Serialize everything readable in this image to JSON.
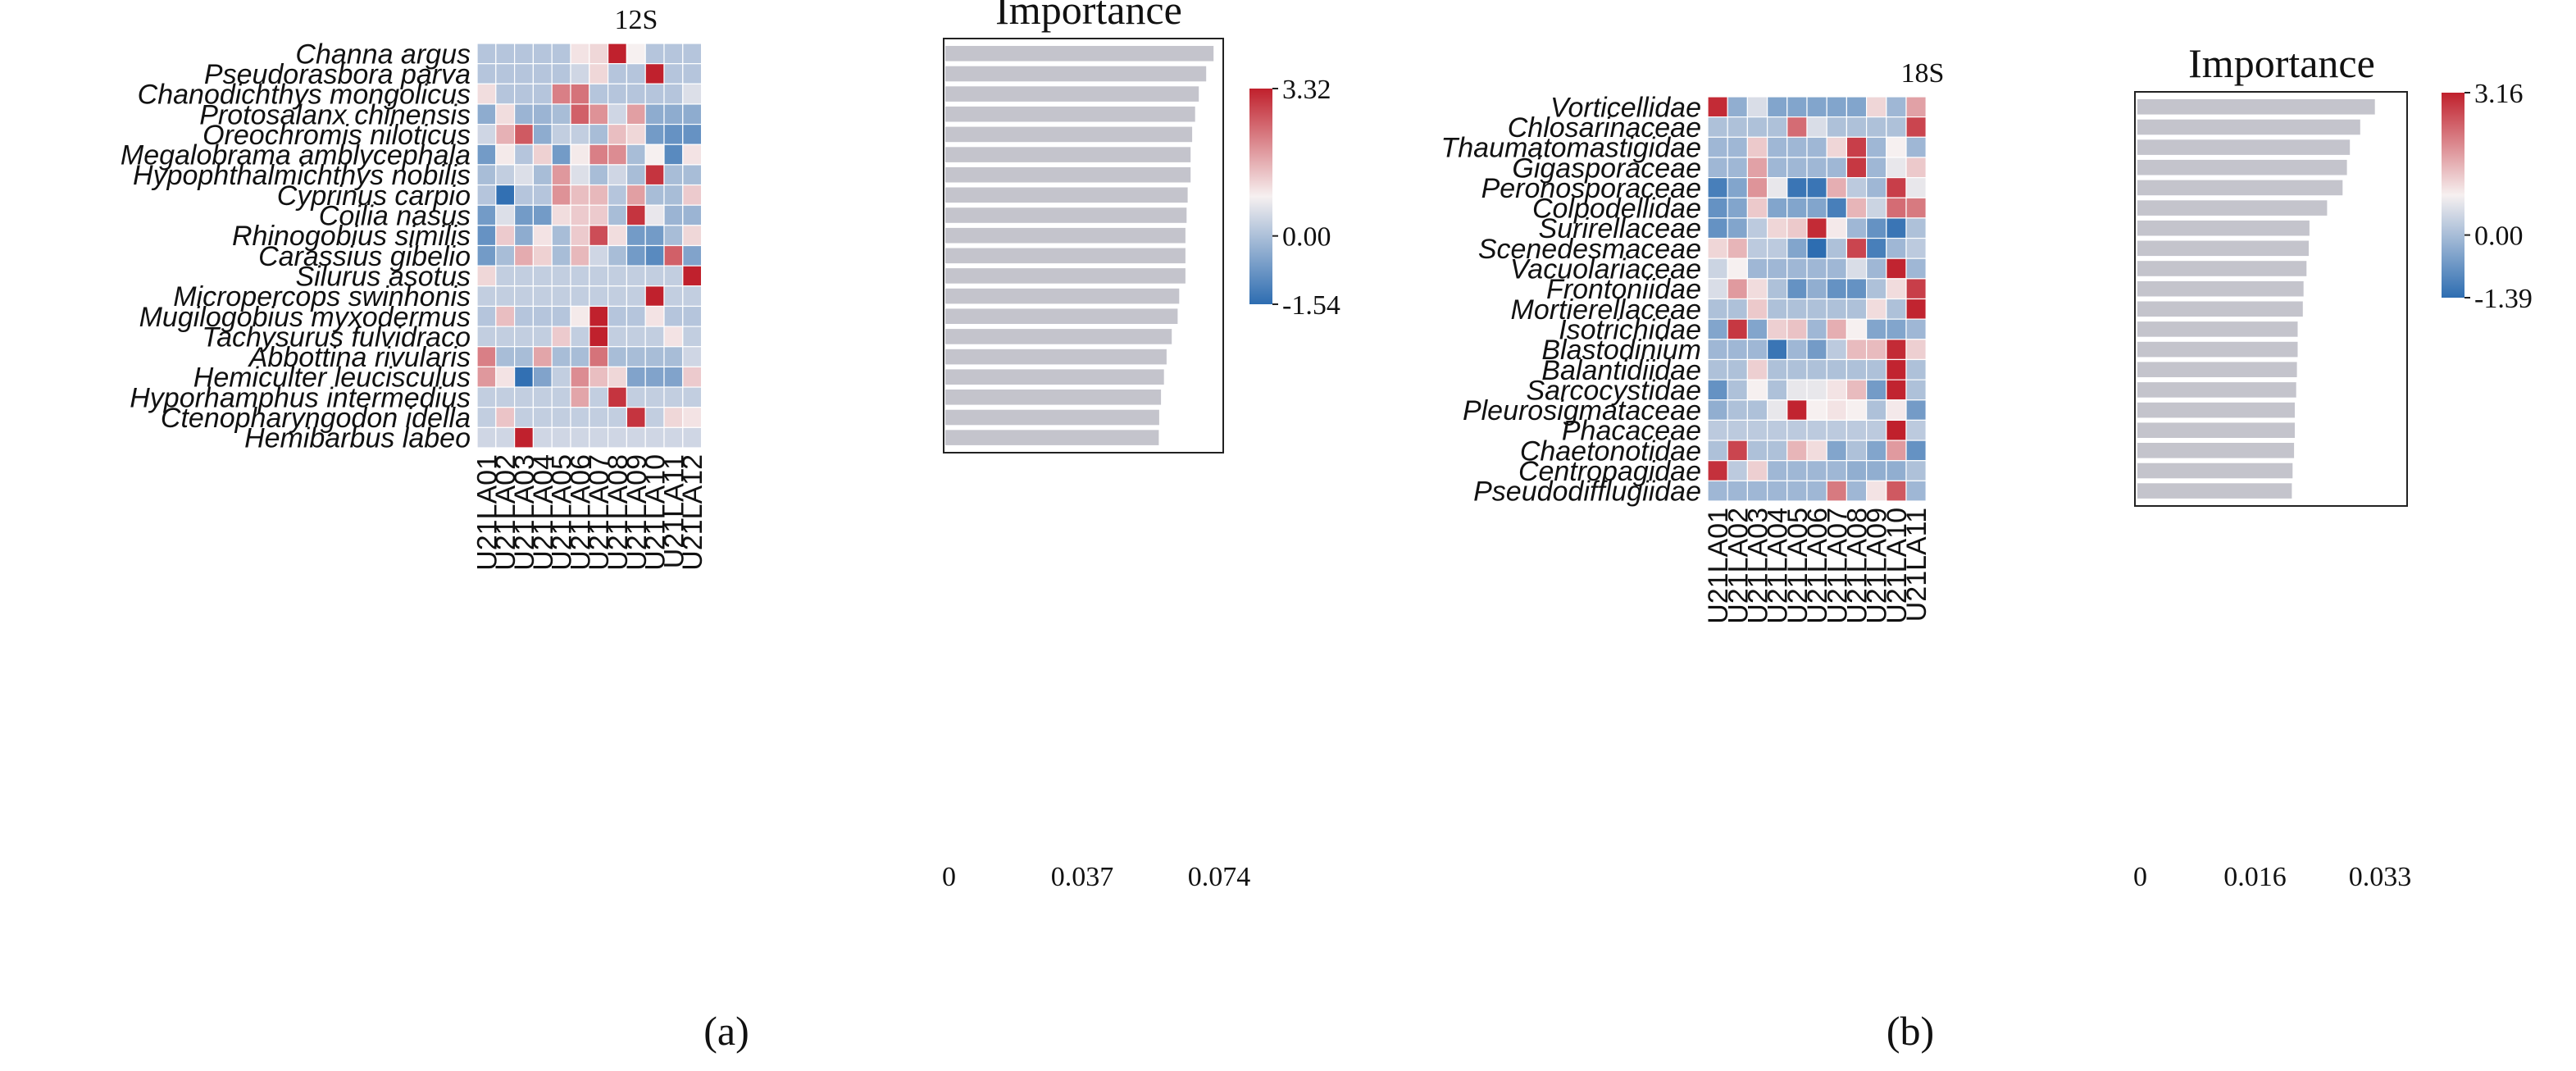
{
  "chart_data": [
    {
      "type": "heatmap",
      "panel": "(a)",
      "title": "12S",
      "importance_title": "Importance",
      "colorbar": {
        "max": 3.32,
        "mid": 0.0,
        "min": -1.54,
        "labels": [
          "3.32",
          "0.00",
          "-1.54"
        ]
      },
      "samples": [
        "U21LA01",
        "U21LA02",
        "U21LA03",
        "U21LA04",
        "U21LA05",
        "U21LA06",
        "U21LA07",
        "U21LA08",
        "U21LA09",
        "U21LA10",
        "U21LA11",
        "U21LA12"
      ],
      "species": [
        "Channa argus",
        "Pseudorasbora parva",
        "Chanodichthys mongolicus",
        "Protosalanx chinensis",
        "Oreochromis niloticus",
        "Megalobrama amblycephala",
        "Hypophthalmichthys nobilis",
        "Cyprinus carpio",
        "Coilia nasus",
        "Rhinogobius similis",
        "Carassius gibelio",
        "Silurus asotus",
        "Micropercops swinhonis",
        "Mugilogobius myxodermus",
        "Tachysurus fulvidraco",
        "Abbottina rivularis",
        "Hemiculter leucisculus",
        "Hyporhamphus intermedius",
        "Ctenopharyngodon idella",
        "Hemibarbus labeo"
      ],
      "values": [
        [
          -0.5,
          -0.5,
          -0.5,
          -0.5,
          -0.5,
          0.2,
          0.4,
          3.3,
          0.0,
          -0.5,
          -0.5,
          -0.5
        ],
        [
          -0.5,
          -0.5,
          -0.5,
          -0.5,
          -0.5,
          -0.3,
          0.4,
          -0.5,
          -0.5,
          3.3,
          -0.5,
          -0.5
        ],
        [
          0.3,
          -0.5,
          -0.5,
          -0.5,
          1.8,
          2.0,
          -0.5,
          -0.5,
          -0.5,
          -0.5,
          -0.5,
          -0.2
        ],
        [
          -0.8,
          0.3,
          -0.7,
          -0.7,
          -0.6,
          2.3,
          1.5,
          -0.3,
          1.3,
          -0.8,
          -0.8,
          -0.8
        ],
        [
          -0.3,
          1.0,
          2.4,
          -0.8,
          -0.4,
          -0.4,
          -0.6,
          0.8,
          0.4,
          -1.0,
          -1.1,
          -1.1
        ],
        [
          -1.0,
          0.1,
          -0.5,
          0.5,
          -1.0,
          0.1,
          1.8,
          1.6,
          -0.6,
          0.0,
          -1.2,
          0.2
        ],
        [
          -0.6,
          -0.4,
          -0.2,
          -0.6,
          1.4,
          -0.2,
          -0.6,
          -0.3,
          -0.6,
          3.0,
          -0.6,
          -0.6
        ],
        [
          -0.5,
          -1.5,
          -0.5,
          -0.5,
          1.5,
          0.8,
          0.9,
          -0.5,
          1.3,
          -0.6,
          -0.6,
          0.6
        ],
        [
          -1.0,
          -0.2,
          -1.0,
          -1.0,
          0.3,
          0.6,
          0.6,
          -0.6,
          3.0,
          -0.1,
          -0.7,
          -0.7
        ],
        [
          -1.1,
          0.6,
          -0.8,
          0.2,
          -0.6,
          0.6,
          2.6,
          0.3,
          -1.0,
          -1.0,
          -0.6,
          0.4
        ],
        [
          -1.0,
          -0.6,
          1.1,
          0.5,
          -0.6,
          0.9,
          -0.3,
          -0.6,
          -1.0,
          -1.2,
          2.3,
          -0.9
        ],
        [
          0.4,
          -0.4,
          -0.4,
          -0.4,
          -0.4,
          -0.4,
          -0.4,
          -0.4,
          -0.4,
          -0.4,
          -0.4,
          3.3
        ],
        [
          -0.4,
          -0.4,
          -0.4,
          -0.4,
          -0.4,
          -0.4,
          -0.4,
          -0.4,
          -0.4,
          3.3,
          -0.4,
          -0.4
        ],
        [
          -0.5,
          0.8,
          -0.5,
          -0.5,
          -0.5,
          0.1,
          3.3,
          -0.5,
          -0.5,
          0.2,
          -0.5,
          -0.5
        ],
        [
          -0.4,
          -0.4,
          -0.4,
          -0.4,
          0.6,
          -0.4,
          3.3,
          -0.4,
          -0.4,
          -0.4,
          0.2,
          -0.4
        ],
        [
          1.8,
          -0.6,
          -0.6,
          1.2,
          -0.6,
          -0.6,
          2.0,
          -0.6,
          -0.6,
          -0.6,
          -0.6,
          -0.3
        ],
        [
          1.4,
          0.2,
          -1.5,
          -0.9,
          -0.4,
          1.6,
          0.8,
          0.4,
          -0.9,
          -0.9,
          -0.9,
          0.6
        ],
        [
          -0.4,
          -0.4,
          -0.4,
          -0.4,
          -0.4,
          1.2,
          -0.4,
          3.0,
          -0.4,
          -0.4,
          -0.4,
          -0.4
        ],
        [
          -0.4,
          0.7,
          -0.4,
          -0.4,
          -0.4,
          -0.4,
          -0.4,
          -0.4,
          3.0,
          -0.4,
          0.4,
          0.2
        ],
        [
          -0.3,
          -0.3,
          3.3,
          -0.3,
          -0.3,
          -0.3,
          -0.3,
          -0.3,
          -0.3,
          -0.3,
          -0.3,
          -0.3
        ]
      ],
      "importance": [
        0.0725,
        0.0705,
        0.0685,
        0.0675,
        0.0667,
        0.0663,
        0.0663,
        0.0655,
        0.0652,
        0.0649,
        0.0649,
        0.0649,
        0.0632,
        0.0628,
        0.0612,
        0.0598,
        0.0591,
        0.0583,
        0.0578,
        0.0577
      ],
      "importance_axis": {
        "min": 0,
        "max": 0.074,
        "ticks": [
          0,
          0.037,
          0.074
        ],
        "tick_labels": [
          "0",
          "0.037",
          "0.074"
        ]
      }
    },
    {
      "type": "heatmap",
      "panel": "(b)",
      "title": "18S",
      "importance_title": "Importance",
      "colorbar": {
        "max": 3.16,
        "mid": 0.0,
        "min": -1.39,
        "labels": [
          "3.16",
          "0.00",
          "-1.39"
        ]
      },
      "samples": [
        "U21LA01",
        "U21LA02",
        "U21LA03",
        "U21LA04",
        "U21LA05",
        "U21LA06",
        "U21LA07",
        "U21LA08",
        "U21LA09",
        "U21LA10",
        "U21LA11"
      ],
      "species": [
        "Vorticellidae",
        "Chlosarinaceae",
        "Thaumatomastigidae",
        "Gigasporaceae",
        "Peronosporaceae",
        "Colpodellidae",
        "Surirellaceae",
        "Scenedesmaceae",
        "Vacuolariaceae",
        "Frontoniidae",
        "Mortierellaceae",
        "Isotrichidae",
        "Blastodinium",
        "Balantidiidae",
        "Sarcocystidae",
        "Pleurosigmataceae",
        "Phacaceae",
        "Chaetonotidae",
        "Centropagidae",
        "Pseudodifflugiidae"
      ],
      "values": [
        [
          3.0,
          -0.7,
          -0.2,
          -0.8,
          -0.8,
          -0.8,
          -0.8,
          -0.8,
          0.4,
          -0.6,
          1.2
        ],
        [
          -0.5,
          -0.5,
          -0.5,
          -0.5,
          2.0,
          -0.2,
          -0.5,
          -0.5,
          -0.5,
          -0.5,
          2.6
        ],
        [
          -0.6,
          -0.6,
          0.6,
          -0.6,
          -0.6,
          -0.6,
          0.4,
          2.7,
          -0.6,
          0.0,
          -0.6
        ],
        [
          -0.6,
          -0.6,
          1.2,
          -0.6,
          -0.6,
          -0.6,
          -0.6,
          2.8,
          -0.6,
          -0.1,
          0.6
        ],
        [
          -1.2,
          -0.8,
          1.4,
          -0.1,
          -1.3,
          -1.3,
          1.0,
          -0.4,
          -0.6,
          2.7,
          -0.1
        ],
        [
          -1.0,
          -0.8,
          0.6,
          -0.8,
          -0.8,
          -0.8,
          -1.2,
          0.9,
          -0.3,
          2.0,
          1.8
        ],
        [
          -1.0,
          -0.8,
          -0.4,
          0.4,
          0.6,
          3.0,
          0.1,
          -0.6,
          -1.0,
          -1.3,
          -0.5
        ],
        [
          0.4,
          0.9,
          -0.4,
          -0.4,
          -0.8,
          -1.4,
          -0.5,
          2.6,
          -1.2,
          -0.6,
          -0.4
        ],
        [
          -0.3,
          0.0,
          -0.6,
          -0.6,
          -0.6,
          -0.6,
          -0.6,
          -0.2,
          -0.6,
          3.1,
          -0.6
        ],
        [
          -0.2,
          1.3,
          0.3,
          -0.5,
          -1.0,
          -0.7,
          -1.0,
          -1.0,
          -0.5,
          0.3,
          2.7
        ],
        [
          -0.5,
          -0.5,
          0.6,
          -0.5,
          -0.5,
          -0.5,
          -0.5,
          -0.5,
          0.3,
          -0.5,
          3.1
        ],
        [
          -0.8,
          2.8,
          -0.8,
          0.5,
          0.7,
          -0.6,
          1.0,
          0.0,
          -0.8,
          -0.8,
          -0.6
        ],
        [
          -0.6,
          -0.6,
          -0.6,
          -1.3,
          -0.6,
          -0.9,
          -0.4,
          0.8,
          0.8,
          3.0,
          0.5
        ],
        [
          -0.5,
          -0.5,
          0.5,
          -0.5,
          -0.5,
          -0.5,
          -0.5,
          -0.5,
          -0.5,
          3.1,
          -0.5
        ],
        [
          -1.0,
          -0.5,
          0.0,
          -0.5,
          -0.1,
          -0.1,
          0.2,
          0.8,
          -0.9,
          3.1,
          -0.5
        ],
        [
          -0.7,
          -0.5,
          -0.5,
          -0.1,
          3.1,
          0.0,
          0.2,
          0.0,
          -0.5,
          0.1,
          -0.9
        ],
        [
          -0.4,
          -0.4,
          -0.4,
          -0.4,
          -0.4,
          -0.4,
          -0.4,
          -0.4,
          -0.4,
          3.2,
          -0.4
        ],
        [
          -0.5,
          2.6,
          -0.5,
          -0.5,
          0.9,
          0.3,
          -0.8,
          -0.5,
          -0.8,
          1.3,
          -1.0
        ],
        [
          2.9,
          -0.4,
          0.5,
          -0.6,
          -0.6,
          -0.6,
          -0.6,
          -0.7,
          -0.7,
          -0.7,
          -0.5
        ],
        [
          -0.6,
          -0.6,
          -0.6,
          -0.6,
          -0.6,
          -0.6,
          1.8,
          -0.6,
          0.2,
          2.3,
          -0.6
        ]
      ],
      "importance": [
        0.0323,
        0.0303,
        0.0289,
        0.0285,
        0.0279,
        0.0258,
        0.0234,
        0.0233,
        0.023,
        0.0226,
        0.0225,
        0.0218,
        0.0218,
        0.0217,
        0.0216,
        0.0214,
        0.0214,
        0.0213,
        0.0211,
        0.021
      ],
      "importance_axis": {
        "min": 0,
        "max": 0.033,
        "ticks": [
          0,
          0.016,
          0.033
        ],
        "tick_labels": [
          "0",
          "0.016",
          "0.033"
        ]
      }
    }
  ]
}
